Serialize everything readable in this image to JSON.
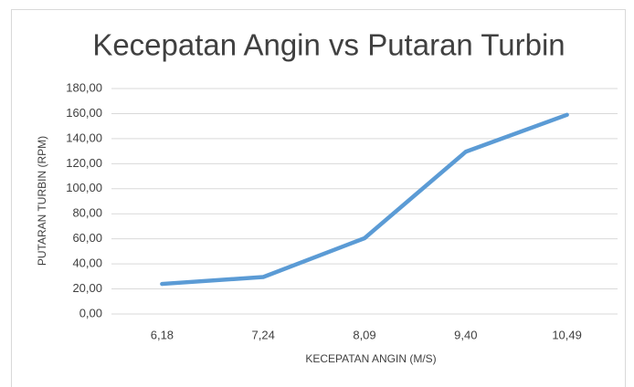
{
  "chart_data": {
    "type": "line",
    "title": "Kecepatan Angin vs Putaran Turbin",
    "x_label": "KECEPATAN ANGIN (M/S)",
    "y_label": "PUTARAN TURBIN (RPM)",
    "categories": [
      "6,18",
      "7,24",
      "8,09",
      "9,40",
      "10,49"
    ],
    "series": [
      {
        "name": "Putaran Turbin",
        "color": "#5b9bd5",
        "values": [
          24,
          29.5,
          60.5,
          129.5,
          159
        ]
      }
    ],
    "ylim": [
      0,
      180
    ],
    "yticks": [
      {
        "value": 0,
        "label": "0,00"
      },
      {
        "value": 20,
        "label": "20,00"
      },
      {
        "value": 40,
        "label": "40,00"
      },
      {
        "value": 60,
        "label": "60,00"
      },
      {
        "value": 80,
        "label": "80,00"
      },
      {
        "value": 100,
        "label": "100,00"
      },
      {
        "value": 120,
        "label": "120,00"
      },
      {
        "value": 140,
        "label": "140,00"
      },
      {
        "value": 160,
        "label": "160,00"
      },
      {
        "value": 180,
        "label": "180,00"
      }
    ],
    "grid": true
  }
}
